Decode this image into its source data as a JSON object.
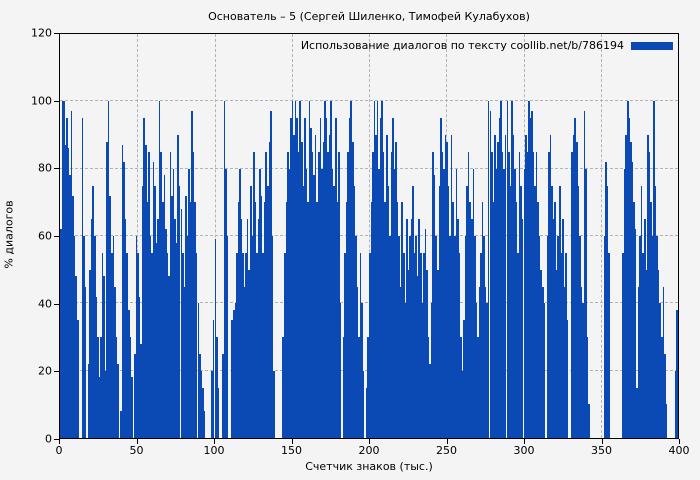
{
  "chart_data": {
    "type": "bar",
    "title": "Основатель – 5 (Сергей Шиленко, Тимофей Кулабухов)",
    "legend": "Использование диалогов по тексту coollib.net/b/786194",
    "xlabel": "Счетчик знаков (тыс.)",
    "ylabel": "% диалогов",
    "xlim": [
      0,
      400
    ],
    "ylim": [
      0,
      120
    ],
    "xticks": [
      0,
      50,
      100,
      150,
      200,
      250,
      300,
      350,
      400
    ],
    "yticks": [
      0,
      20,
      40,
      60,
      80,
      100,
      120
    ],
    "grid": true,
    "legend_position": "top-right",
    "bar_color": "#0b4ab5",
    "background_color": "#f4f4f4",
    "grid_color": "#b3b3b3",
    "x_step": 1,
    "x_start": 0,
    "values": [
      62,
      100,
      100,
      87,
      95,
      86,
      78,
      97,
      72,
      60,
      48,
      35,
      0,
      0,
      95,
      60,
      45,
      0,
      22,
      50,
      65,
      75,
      60,
      42,
      30,
      18,
      30,
      55,
      48,
      20,
      88,
      100,
      72,
      55,
      60,
      45,
      30,
      22,
      0,
      8,
      87,
      82,
      65,
      55,
      38,
      30,
      18,
      0,
      25,
      60,
      55,
      42,
      28,
      75,
      95,
      87,
      70,
      85,
      60,
      55,
      82,
      75,
      58,
      65,
      100,
      85,
      70,
      78,
      62,
      55,
      48,
      85,
      72,
      80,
      65,
      58,
      90,
      75,
      68,
      55,
      45,
      72,
      60,
      80,
      70,
      97,
      85,
      70,
      55,
      40,
      25,
      20,
      15,
      8,
      0,
      0,
      0,
      0,
      20,
      35,
      59,
      30,
      15,
      0,
      0,
      25,
      100,
      80,
      60,
      0,
      0,
      35,
      38,
      40,
      55,
      70,
      80,
      65,
      55,
      45,
      55,
      65,
      50,
      75,
      60,
      85,
      70,
      55,
      65,
      80,
      72,
      55,
      70,
      85,
      75,
      88,
      97,
      60,
      20,
      0,
      0,
      0,
      0,
      0,
      30,
      55,
      70,
      85,
      80,
      95,
      100,
      90,
      100,
      95,
      85,
      100,
      88,
      75,
      95,
      80,
      70,
      100,
      92,
      85,
      78,
      90,
      70,
      85,
      95,
      80,
      88,
      100,
      95,
      85,
      90,
      100,
      80,
      75,
      95,
      70,
      85,
      40,
      0,
      30,
      55,
      70,
      85,
      95,
      100,
      88,
      75,
      60,
      45,
      30,
      55,
      40,
      20,
      0,
      15,
      30,
      55,
      70,
      85,
      100,
      90,
      100,
      80,
      95,
      100,
      85,
      70,
      90,
      75,
      60,
      85,
      95,
      80,
      88,
      70,
      60,
      45,
      70,
      55,
      40,
      65,
      50,
      60,
      65,
      75,
      55,
      60,
      48,
      65,
      55,
      40,
      55,
      62,
      50,
      30,
      22,
      40,
      85,
      78,
      60,
      50,
      75,
      95,
      85,
      80,
      90,
      88,
      75,
      60,
      90,
      70,
      60,
      80,
      65,
      55,
      30,
      20,
      35,
      60,
      75,
      85,
      70,
      65,
      80,
      60,
      40,
      30,
      45,
      55,
      70,
      60,
      45,
      40,
      100,
      97,
      85,
      70,
      90,
      80,
      88,
      95,
      100,
      85,
      80,
      90,
      100,
      85,
      75,
      100,
      90,
      80,
      70,
      55,
      85,
      75,
      65,
      80,
      90,
      85,
      100,
      95,
      97,
      85,
      75,
      85,
      70,
      60,
      50,
      45,
      40,
      0,
      60,
      85,
      90,
      75,
      65,
      70,
      50,
      60,
      75,
      55,
      65,
      45,
      55,
      35,
      0,
      0,
      85,
      90,
      95,
      88,
      75,
      60,
      45,
      40,
      97,
      80,
      30,
      10,
      0,
      0,
      0,
      0,
      0,
      0,
      0,
      0,
      0,
      60,
      82,
      75,
      55,
      0,
      0,
      0,
      0,
      0,
      0,
      0,
      0,
      55,
      80,
      90,
      100,
      95,
      88,
      82,
      70,
      62,
      15,
      45,
      60,
      75,
      55,
      65,
      50,
      90,
      85,
      70,
      60,
      100,
      75,
      60,
      50,
      40,
      30,
      45,
      25,
      10,
      0,
      0,
      0,
      0,
      0,
      20,
      38
    ]
  }
}
